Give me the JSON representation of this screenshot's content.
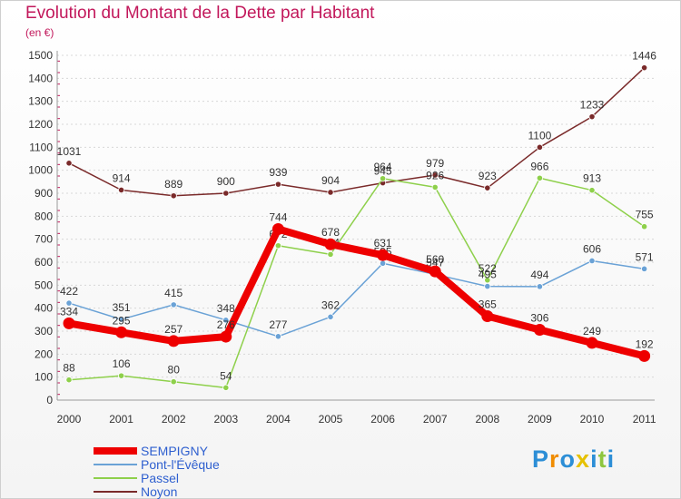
{
  "title": "Evolution du Montant de la Dette par Habitant",
  "unit": "(en €)",
  "logo": "Proxiti",
  "chart_data": {
    "type": "line",
    "title": "Evolution du Montant de la Dette par Habitant",
    "ylabel": "(en €)",
    "ylim": [
      0,
      1500
    ],
    "yticks": [
      0,
      100,
      200,
      300,
      400,
      500,
      600,
      700,
      800,
      900,
      1000,
      1100,
      1200,
      1300,
      1400,
      1500
    ],
    "categories": [
      "2000",
      "2001",
      "2002",
      "2003",
      "2004",
      "2005",
      "2006",
      "2007",
      "2008",
      "2009",
      "2010",
      "2011"
    ],
    "grid": true,
    "legend": "bottom-left",
    "series": [
      {
        "name": "SEMPIGNY",
        "color": "#ee0000",
        "values": [
          334,
          295,
          257,
          276,
          744,
          678,
          631,
          560,
          365,
          306,
          249,
          192
        ]
      },
      {
        "name": "Pont-l'Évêque",
        "color": "#6aa2d6",
        "values": [
          422,
          351,
          415,
          348,
          277,
          362,
          595,
          547,
          495,
          494,
          606,
          571
        ]
      },
      {
        "name": "Passel",
        "color": "#8ed04b",
        "values": [
          88,
          106,
          80,
          54,
          672,
          634,
          964,
          926,
          522,
          966,
          913,
          755
        ]
      },
      {
        "name": "Noyon",
        "color": "#7a2a2a",
        "values": [
          1031,
          914,
          889,
          900,
          939,
          904,
          945,
          979,
          923,
          1100,
          1233,
          1446
        ]
      }
    ]
  }
}
